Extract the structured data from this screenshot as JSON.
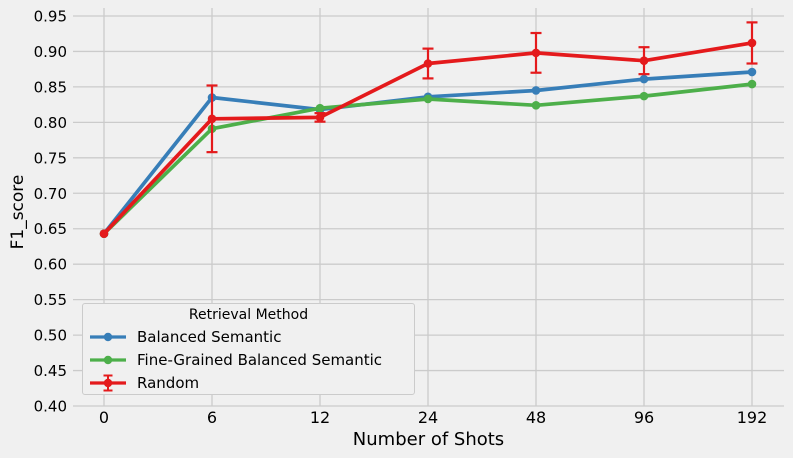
{
  "figure": {
    "background": "#f0f0f0",
    "grid_color": "#cbcbcb",
    "text_color": "#000000"
  },
  "chart_data": {
    "type": "line",
    "title": "",
    "xlabel": "Number of Shots",
    "ylabel": "F1_score",
    "categories": [
      "0",
      "6",
      "12",
      "24",
      "48",
      "96",
      "192"
    ],
    "yticks": [
      "0.95",
      "0.90",
      "0.85",
      "0.80",
      "0.75",
      "0.70",
      "0.65",
      "0.60",
      "0.55",
      "0.50",
      "0.45",
      "0.40"
    ],
    "ylim": [
      0.4,
      0.95
    ],
    "grid": true,
    "legend": {
      "title": "Retrieval Method",
      "position": "lower left"
    },
    "series": [
      {
        "name": "Balanced Semantic",
        "color": "#377eb8",
        "marker": "circle",
        "values": [
          0.643,
          0.835,
          0.818,
          0.836,
          0.845,
          0.861,
          0.871
        ],
        "errors": null
      },
      {
        "name": "Fine-Grained Balanced Semantic",
        "color": "#4daf4a",
        "marker": "circle",
        "values": [
          0.643,
          0.791,
          0.82,
          0.833,
          0.824,
          0.837,
          0.854
        ],
        "errors": null
      },
      {
        "name": "Random",
        "color": "#e41a1c",
        "marker": "circle",
        "values": [
          0.643,
          0.805,
          0.807,
          0.883,
          0.898,
          0.887,
          0.912
        ],
        "errors": [
          0.0,
          0.047,
          0.006,
          0.021,
          0.028,
          0.019,
          0.029
        ]
      }
    ]
  }
}
